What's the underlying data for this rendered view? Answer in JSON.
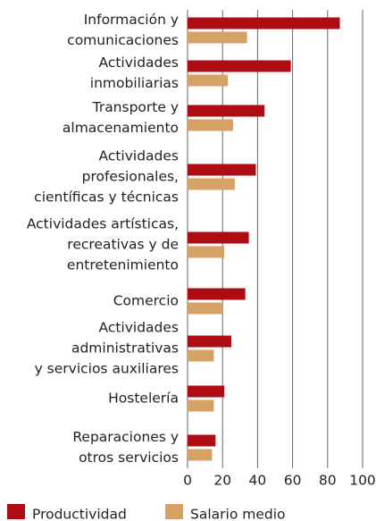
{
  "chart_data": {
    "type": "bar",
    "orientation": "horizontal",
    "categories": [
      [
        "Información y",
        "comunicaciones"
      ],
      [
        "Actividades",
        "inmobiliarias"
      ],
      [
        "Transporte y",
        "almacenamiento"
      ],
      [
        "Actividades",
        "profesionales,",
        "científicas y técnicas"
      ],
      [
        "Actividades artísticas,",
        "recreativas y de",
        "entretenimiento"
      ],
      [
        "Comercio"
      ],
      [
        "Actividades",
        "administrativas",
        "y servicios auxiliares"
      ],
      [
        "Hostelería"
      ],
      [
        "Reparaciones y",
        "otros servicios"
      ]
    ],
    "series": [
      {
        "name": "Productividad",
        "color": "#ad0c12",
        "values": [
          87,
          59,
          44,
          39,
          35,
          33,
          25,
          21,
          16
        ]
      },
      {
        "name": "Salario medio",
        "color": "#d6a165",
        "values": [
          34,
          23,
          26,
          27,
          21,
          20,
          15,
          15,
          14
        ]
      }
    ],
    "xlim": [
      0,
      100
    ],
    "xticks": [
      0,
      20,
      40,
      60,
      80,
      100
    ],
    "grid": true,
    "legend": "bottom"
  }
}
